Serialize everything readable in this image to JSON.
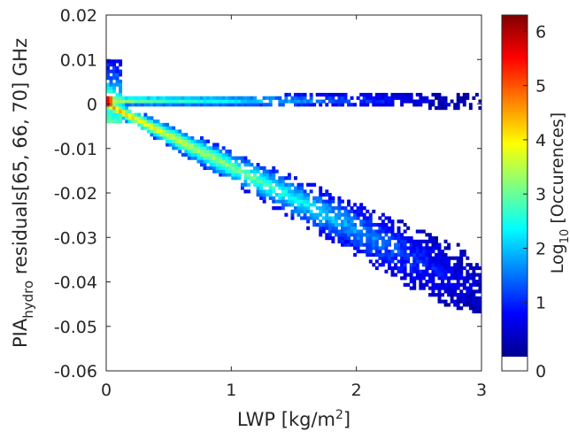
{
  "chart_data": {
    "type": "heatmap",
    "xlabel": "LWP [kg/m",
    "xlabel_sup": "2",
    "xlabel_end": "]",
    "ylabel_main": "PIA",
    "ylabel_sub": "hydro",
    "ylabel_rest": " residuals[65, 66, 70] GHz",
    "xlim": [
      0,
      3
    ],
    "ylim": [
      -0.06,
      0.02
    ],
    "x_ticks": [
      0,
      1,
      2,
      3
    ],
    "x_tick_labels": [
      "0",
      "1",
      "2",
      "3"
    ],
    "y_ticks": [
      0.02,
      0.01,
      0,
      -0.01,
      -0.02,
      -0.03,
      -0.04,
      -0.05,
      -0.06
    ],
    "y_tick_labels": [
      "0.02",
      "0.01",
      "0",
      "-0.01",
      "-0.02",
      "-0.03",
      "-0.04",
      "-0.05",
      "-0.06"
    ],
    "colorbar": {
      "label_main": "Log",
      "label_sub": "10",
      "label_rest": " [Occurences]",
      "range": [
        0,
        6.3
      ],
      "ticks": [
        0,
        1,
        2,
        3,
        4,
        5,
        6
      ],
      "tick_labels": [
        "0",
        "1",
        "2",
        "3",
        "4",
        "5",
        "6"
      ],
      "colormap": "jet"
    },
    "structure": [
      {
        "name": "upper branch",
        "x_range": [
          0,
          3
        ],
        "y_center": 0.001,
        "log_occurrence_start": 3.5,
        "log_occurrence_end": 0.5
      },
      {
        "name": "lower branch",
        "x_range": [
          0,
          3
        ],
        "y_center_start": 0,
        "y_center_end": -0.041,
        "log_occurrence_start": 4.5,
        "log_occurrence_end": 0.5
      },
      {
        "name": "origin peak",
        "x": 0.02,
        "y": 0.0005,
        "log_occurrence": 6.2
      }
    ]
  }
}
